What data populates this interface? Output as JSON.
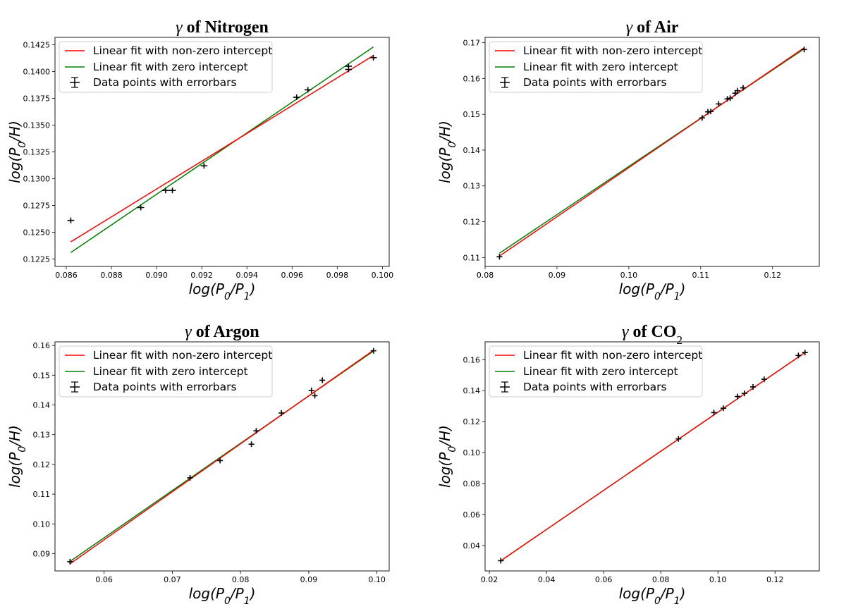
{
  "chart_data": [
    {
      "type": "scatter",
      "title": {
        "main": "γ",
        "rest": " of Nitrogen",
        "sub": ""
      },
      "xlabel": "log(P0/P1)",
      "ylabel": "log(P0/H)",
      "xlim": [
        0.0855,
        0.1003
      ],
      "ylim": [
        0.1218,
        0.1432
      ],
      "xticks": [
        0.086,
        0.088,
        0.09,
        0.092,
        0.094,
        0.096,
        0.098,
        0.1
      ],
      "xtick_labels": [
        "0.086",
        "0.088",
        "0.090",
        "0.092",
        "0.094",
        "0.096",
        "0.098",
        "0.100"
      ],
      "yticks": [
        0.1225,
        0.125,
        0.1275,
        0.13,
        0.1325,
        0.135,
        0.1375,
        0.14,
        0.1425
      ],
      "ytick_labels": [
        "0.1225",
        "0.1250",
        "0.1275",
        "0.1300",
        "0.1325",
        "0.1350",
        "0.1375",
        "0.1400",
        "0.1425"
      ],
      "legend_position": "top-left",
      "legend": [
        "Linear fit with non-zero intercept",
        "Linear fit with zero intercept",
        "Data points with errorbars"
      ],
      "fit_nonzero": {
        "x": [
          0.0862,
          0.0996
        ],
        "y": [
          0.1241,
          0.1415
        ],
        "color": "#ff0000"
      },
      "fit_zero": {
        "x": [
          0.0862,
          0.0996
        ],
        "y": [
          0.1231,
          0.1423
        ],
        "color": "#008000"
      },
      "points": {
        "x": [
          0.0862,
          0.0893,
          0.0904,
          0.0907,
          0.0921,
          0.0962,
          0.0967,
          0.0985,
          0.0985,
          0.0996
        ],
        "y": [
          0.1261,
          0.1273,
          0.1289,
          0.1289,
          0.1312,
          0.1376,
          0.1383,
          0.1402,
          0.1405,
          0.1413
        ]
      },
      "errorbar": {
        "x": 0.00015,
        "y": 0.0002
      }
    },
    {
      "type": "scatter",
      "title": {
        "main": "γ",
        "rest": " of Air",
        "sub": ""
      },
      "xlabel": "log(P0/P1)",
      "ylabel": "log(P0/H)",
      "xlim": [
        0.08,
        0.1265
      ],
      "ylim": [
        0.1075,
        0.1715
      ],
      "xticks": [
        0.08,
        0.09,
        0.1,
        0.11,
        0.12
      ],
      "xtick_labels": [
        "0.08",
        "0.09",
        "0.10",
        "0.11",
        "0.12"
      ],
      "yticks": [
        0.11,
        0.12,
        0.13,
        0.14,
        0.15,
        0.16,
        0.17
      ],
      "ytick_labels": [
        "0.11",
        "0.12",
        "0.13",
        "0.14",
        "0.15",
        "0.16",
        "0.17"
      ],
      "legend_position": "top-left",
      "legend": [
        "Linear fit with non-zero intercept",
        "Linear fit with zero intercept",
        "Data points with errorbars"
      ],
      "fit_nonzero": {
        "x": [
          0.082,
          0.1244
        ],
        "y": [
          0.1104,
          0.1686
        ],
        "color": "#ff0000"
      },
      "fit_zero": {
        "x": [
          0.082,
          0.1244
        ],
        "y": [
          0.1112,
          0.1683
        ],
        "color": "#008000"
      },
      "points": {
        "x": [
          0.082,
          0.1102,
          0.111,
          0.1114,
          0.1125,
          0.1137,
          0.1141,
          0.1148,
          0.1151,
          0.1159,
          0.1244
        ],
        "y": [
          0.1102,
          0.149,
          0.1507,
          0.1508,
          0.1529,
          0.1543,
          0.1545,
          0.1559,
          0.1566,
          0.1574,
          0.1681
        ]
      },
      "errorbar": {
        "x": 0.0004,
        "y": 0.0005
      }
    },
    {
      "type": "scatter",
      "title": {
        "main": "γ",
        "rest": " of Argon",
        "sub": ""
      },
      "xlabel": "log(P0/P1)",
      "ylabel": "log(P0/H)",
      "xlim": [
        0.0528,
        0.1018
      ],
      "ylim": [
        0.0842,
        0.1612
      ],
      "xticks": [
        0.06,
        0.07,
        0.08,
        0.09,
        0.1
      ],
      "xtick_labels": [
        "0.06",
        "0.07",
        "0.08",
        "0.09",
        "0.10"
      ],
      "yticks": [
        0.09,
        0.1,
        0.11,
        0.12,
        0.13,
        0.14,
        0.15,
        0.16
      ],
      "ytick_labels": [
        "0.09",
        "0.10",
        "0.11",
        "0.12",
        "0.13",
        "0.14",
        "0.15",
        "0.16"
      ],
      "legend_position": "top-left",
      "legend": [
        "Linear fit with non-zero intercept",
        "Linear fit with zero intercept",
        "Data points with errorbars"
      ],
      "fit_nonzero": {
        "x": [
          0.055,
          0.0995
        ],
        "y": [
          0.0866,
          0.1584
        ],
        "color": "#ff0000"
      },
      "fit_zero": {
        "x": [
          0.055,
          0.0995
        ],
        "y": [
          0.0874,
          0.1581
        ],
        "color": "#008000"
      },
      "points": {
        "x": [
          0.055,
          0.0726,
          0.077,
          0.0816,
          0.0823,
          0.086,
          0.0904,
          0.0909,
          0.092,
          0.0995
        ],
        "y": [
          0.0873,
          0.1155,
          0.1213,
          0.1268,
          0.1313,
          0.1373,
          0.1449,
          0.1431,
          0.1483,
          0.1582
        ]
      },
      "errorbar": {
        "x": 0.0004,
        "y": 0.0007
      }
    },
    {
      "type": "scatter",
      "title": {
        "main": "γ",
        "rest": " of CO",
        "sub": "2"
      },
      "xlabel": "log(P0/P1)",
      "ylabel": "log(P0/H)",
      "xlim": [
        0.0185,
        0.1355
      ],
      "ylim": [
        0.0235,
        0.1715
      ],
      "xticks": [
        0.02,
        0.04,
        0.06,
        0.08,
        0.1,
        0.12
      ],
      "xtick_labels": [
        "0.02",
        "0.04",
        "0.06",
        "0.08",
        "0.10",
        "0.12"
      ],
      "yticks": [
        0.04,
        0.06,
        0.08,
        0.1,
        0.12,
        0.14,
        0.16
      ],
      "ytick_labels": [
        "0.04",
        "0.06",
        "0.08",
        "0.10",
        "0.12",
        "0.14",
        "0.16"
      ],
      "legend_position": "top-left",
      "legend": [
        "Linear fit with non-zero intercept",
        "Linear fit with zero intercept",
        "Data points with errorbars"
      ],
      "fit_nonzero": {
        "x": [
          0.024,
          0.1305
        ],
        "y": [
          0.0301,
          0.1646
        ],
        "color": "#ff0000"
      },
      "fit_zero": {
        "x": [
          0.024,
          0.1305
        ],
        "y": [
          0.0301,
          0.1646
        ],
        "color": "#008000"
      },
      "points": {
        "x": [
          0.024,
          0.0862,
          0.0986,
          0.1019,
          0.1069,
          0.1093,
          0.1123,
          0.1162,
          0.1282,
          0.1305
        ],
        "y": [
          0.0301,
          0.1088,
          0.1258,
          0.1286,
          0.1362,
          0.1382,
          0.1424,
          0.1473,
          0.1627,
          0.1646
        ]
      },
      "errorbar": {
        "x": 0.001,
        "y": 0.0012
      }
    }
  ]
}
